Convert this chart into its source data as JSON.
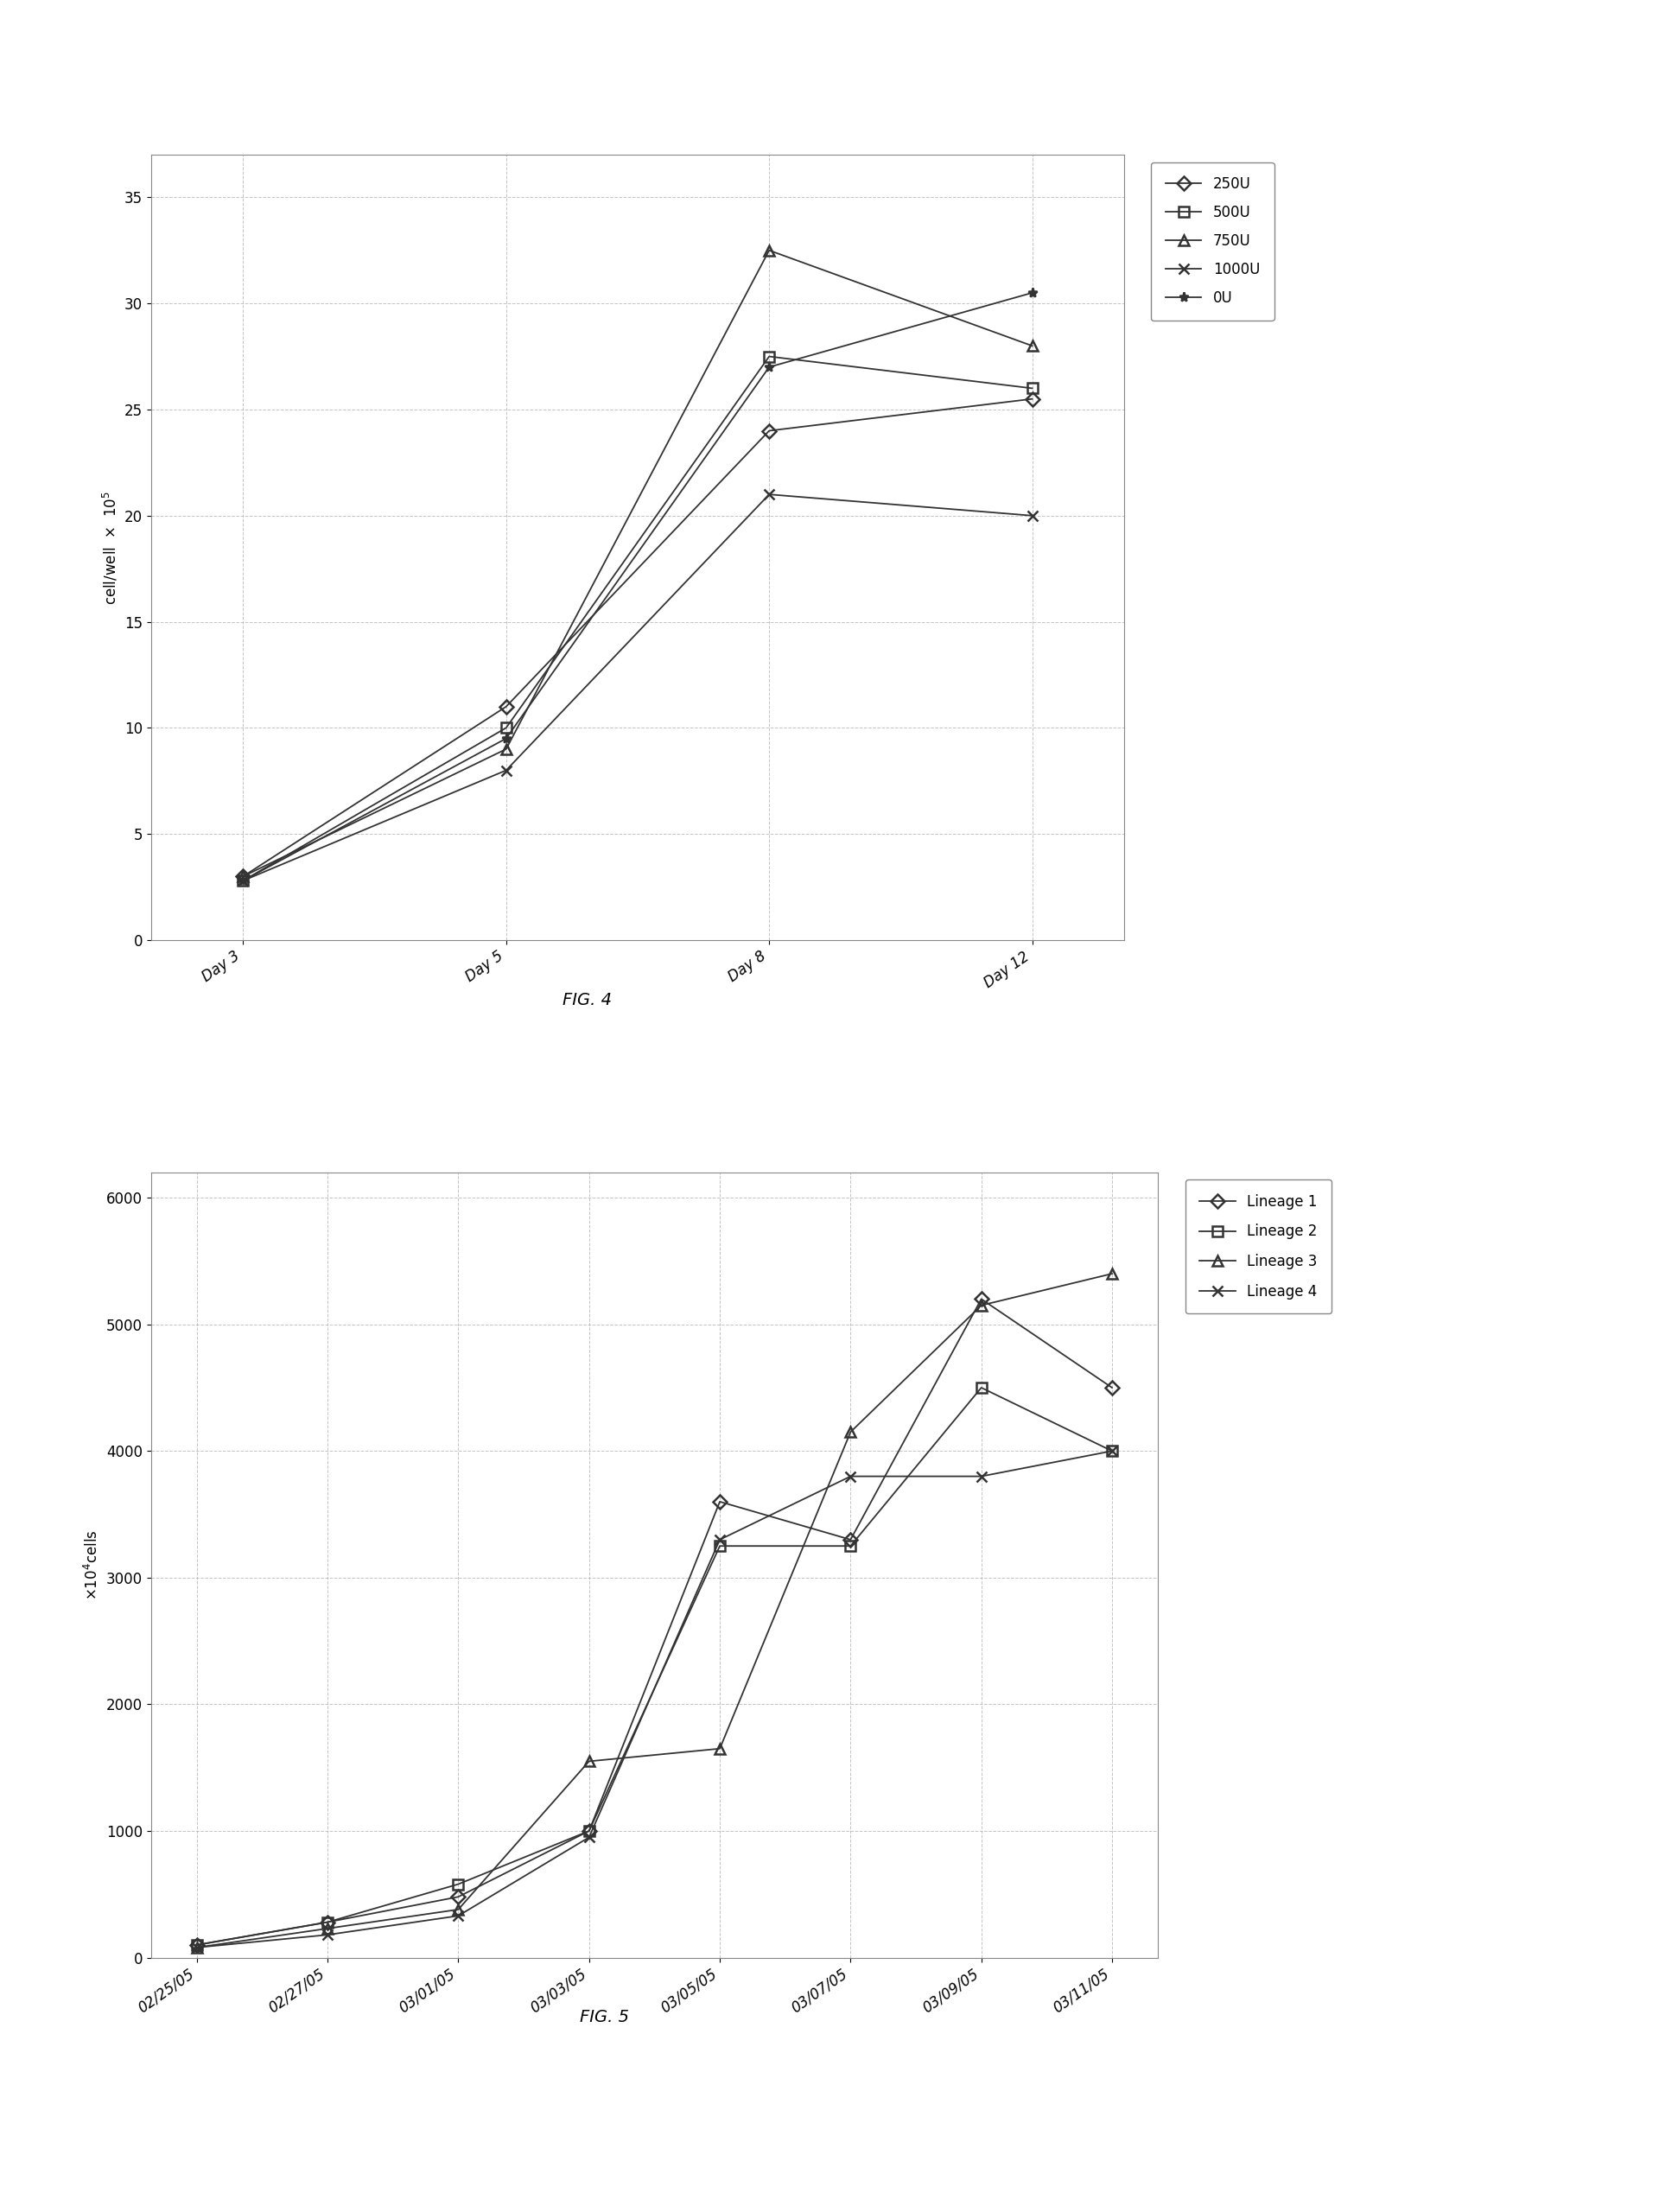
{
  "fig4": {
    "x_labels": [
      "Day 3",
      "Day 5",
      "Day 8",
      "Day 12"
    ],
    "x_positions": [
      0,
      1,
      2,
      3
    ],
    "series": [
      {
        "label": "250U",
        "marker": "D",
        "values": [
          3.0,
          11.0,
          24.0,
          25.5
        ],
        "color": "#333333"
      },
      {
        "label": "500U",
        "marker": "s",
        "values": [
          2.8,
          10.0,
          27.5,
          26.0
        ],
        "color": "#333333"
      },
      {
        "label": "750U",
        "marker": "^",
        "values": [
          3.0,
          9.0,
          32.5,
          28.0
        ],
        "color": "#333333"
      },
      {
        "label": "1000U",
        "marker": "x",
        "values": [
          2.8,
          8.0,
          21.0,
          20.0
        ],
        "color": "#333333"
      },
      {
        "label": "0U",
        "marker": "*",
        "values": [
          2.8,
          9.5,
          27.0,
          30.5
        ],
        "color": "#333333"
      }
    ],
    "ylabel": "cell/well x 10^5",
    "ylim": [
      0,
      37
    ],
    "yticks": [
      0,
      5,
      10,
      15,
      20,
      25,
      30,
      35
    ],
    "fig_label": "FIG. 4",
    "legend_fontsize": 12,
    "axis_fontsize": 12,
    "tick_fontsize": 12
  },
  "fig5": {
    "x_labels": [
      "02/25/05",
      "02/27/05",
      "03/01/05",
      "03/03/05",
      "03/05/05",
      "03/07/05",
      "03/09/05",
      "03/11/05"
    ],
    "x_positions": [
      0,
      1,
      2,
      3,
      4,
      5,
      6,
      7
    ],
    "series": [
      {
        "label": "Lineage 1",
        "marker": "D",
        "values": [
          100,
          280,
          480,
          1000,
          3600,
          3300,
          5200,
          4500
        ],
        "color": "#333333"
      },
      {
        "label": "Lineage 2",
        "marker": "s",
        "values": [
          100,
          280,
          580,
          1000,
          3250,
          3250,
          4500,
          4000
        ],
        "color": "#333333"
      },
      {
        "label": "Lineage 3",
        "marker": "^",
        "values": [
          80,
          230,
          380,
          1550,
          1650,
          4150,
          5150,
          5400
        ],
        "color": "#333333"
      },
      {
        "label": "Lineage 4",
        "marker": "x",
        "values": [
          80,
          180,
          330,
          950,
          3300,
          3800,
          3800,
          4000
        ],
        "color": "#333333"
      }
    ],
    "ylabel": "x10^4cells",
    "ylim": [
      0,
      6200
    ],
    "yticks": [
      0,
      1000,
      2000,
      3000,
      4000,
      5000,
      6000
    ],
    "fig_label": "FIG. 5",
    "legend_fontsize": 12,
    "axis_fontsize": 12,
    "tick_fontsize": 12
  },
  "background_color": "#ffffff",
  "plot_bg_color": "#ffffff"
}
